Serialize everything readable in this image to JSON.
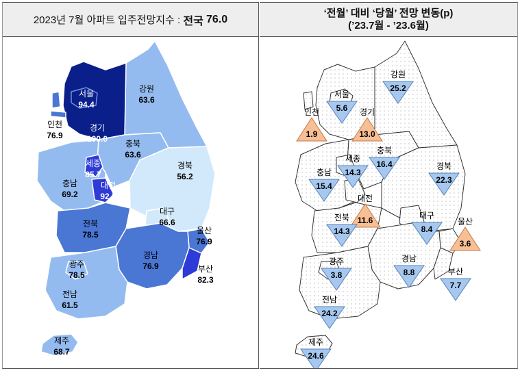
{
  "left_header": {
    "prefix": "2023년 7월 아파트 입주전망지수 :",
    "national_label": "전국",
    "national_value": "76.0"
  },
  "right_header": {
    "line1": "‘전월’ 대비 ‘당월’ 전망 변동(p)",
    "line2": "(’23.7월 - ’23.6월)"
  },
  "colors": {
    "level_highest": "#0a1f8a",
    "level_high": "#2e3bd6",
    "level_mid": "#4a76d4",
    "level_low": "#94bbef",
    "level_lowest": "#d2e9fb",
    "increase": "#f8bf94",
    "decrease": "#a6c8ef"
  },
  "left_regions": [
    {
      "name": "서울",
      "value": "94.4"
    },
    {
      "name": "경기",
      "value": "100.0"
    },
    {
      "name": "인천",
      "value": "76.9"
    },
    {
      "name": "강원",
      "value": "63.6"
    },
    {
      "name": "충북",
      "value": "63.6"
    },
    {
      "name": "세종",
      "value": "85.7"
    },
    {
      "name": "대전",
      "value": "92.3"
    },
    {
      "name": "충남",
      "value": "69.2"
    },
    {
      "name": "경북",
      "value": "56.2"
    },
    {
      "name": "대구",
      "value": "66.6"
    },
    {
      "name": "전북",
      "value": "78.5"
    },
    {
      "name": "울산",
      "value": "76.9"
    },
    {
      "name": "경남",
      "value": "76.9"
    },
    {
      "name": "부산",
      "value": "82.3"
    },
    {
      "name": "광주",
      "value": "78.5"
    },
    {
      "name": "전남",
      "value": "61.5"
    },
    {
      "name": "제주",
      "value": "68.7"
    }
  ],
  "right_regions": [
    {
      "name": "강원",
      "value": "25.2",
      "direction": "down"
    },
    {
      "name": "서울",
      "value": "5.6",
      "direction": "down"
    },
    {
      "name": "인천",
      "value": "1.9",
      "direction": "up"
    },
    {
      "name": "경기",
      "value": "13.0",
      "direction": "up"
    },
    {
      "name": "충북",
      "value": "16.4",
      "direction": "down"
    },
    {
      "name": "세종",
      "value": "14.3",
      "direction": "down"
    },
    {
      "name": "경북",
      "value": "22.3",
      "direction": "down"
    },
    {
      "name": "충남",
      "value": "15.4",
      "direction": "down"
    },
    {
      "name": "대전",
      "value": "11.6",
      "direction": "up"
    },
    {
      "name": "대구",
      "value": "8.4",
      "direction": "down"
    },
    {
      "name": "울산",
      "value": "3.6",
      "direction": "up"
    },
    {
      "name": "전북",
      "value": "14.3",
      "direction": "down"
    },
    {
      "name": "광주",
      "value": "3.8",
      "direction": "down"
    },
    {
      "name": "경남",
      "value": "8.8",
      "direction": "down"
    },
    {
      "name": "부산",
      "value": "7.7",
      "direction": "down"
    },
    {
      "name": "전남",
      "value": "24.2",
      "direction": "down"
    },
    {
      "name": "제주",
      "value": "24.6",
      "direction": "down"
    }
  ]
}
